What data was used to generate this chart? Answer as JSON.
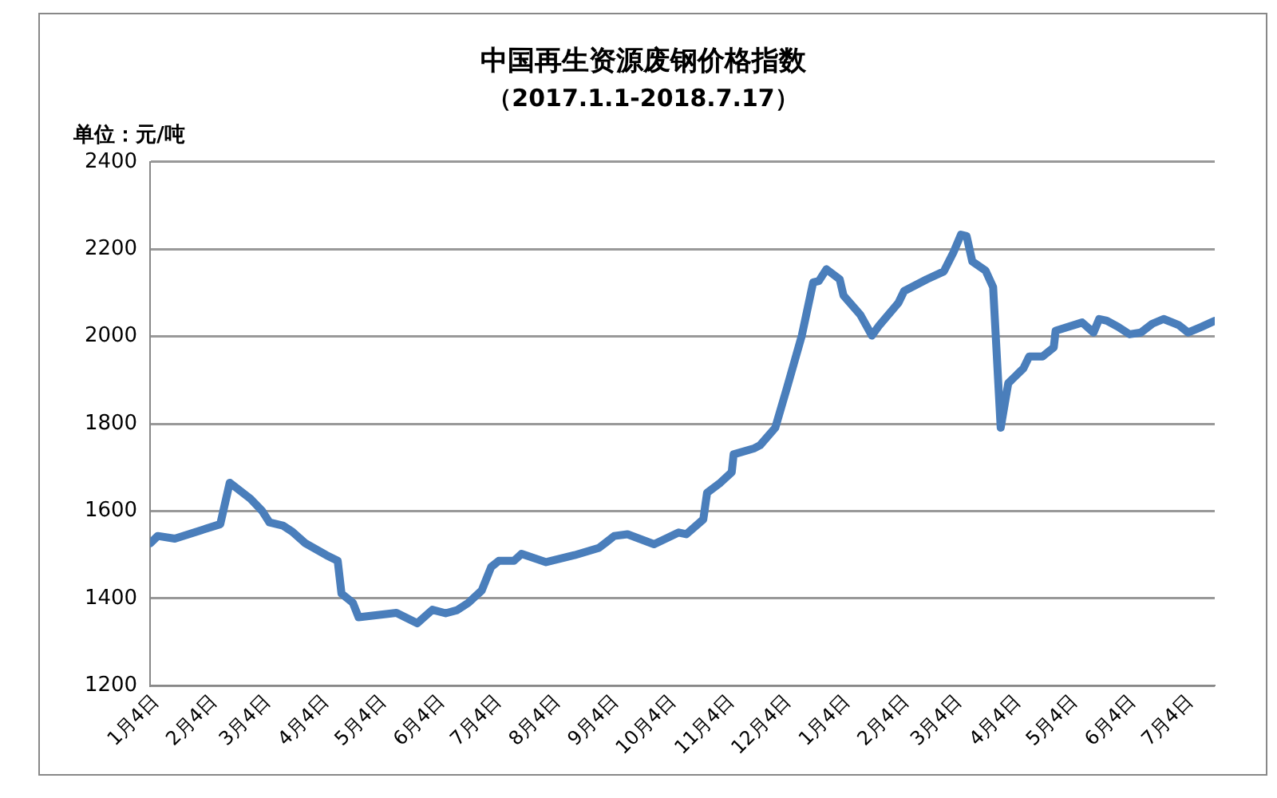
{
  "chart_data": {
    "type": "line",
    "title": "中国再生资源废钢价格指数",
    "subtitle": "（2017.1.1-2018.7.17）",
    "ylabel": "单位：元/吨",
    "x": [
      "2017-01-01",
      "2017-01-05",
      "2017-01-14",
      "2017-02-07",
      "2017-02-12",
      "2017-02-23",
      "2017-03-01",
      "2017-03-05",
      "2017-03-12",
      "2017-03-17",
      "2017-03-24",
      "2017-04-04",
      "2017-04-10",
      "2017-04-12",
      "2017-04-18",
      "2017-04-21",
      "2017-05-11",
      "2017-05-22",
      "2017-05-30",
      "2017-06-06",
      "2017-06-12",
      "2017-06-18",
      "2017-06-25",
      "2017-06-30",
      "2017-07-04",
      "2017-07-12",
      "2017-07-16",
      "2017-07-29",
      "2017-08-13",
      "2017-08-26",
      "2017-09-03",
      "2017-09-10",
      "2017-09-24",
      "2017-10-07",
      "2017-10-11",
      "2017-10-20",
      "2017-10-22",
      "2017-10-29",
      "2017-11-04",
      "2017-11-05",
      "2017-11-16",
      "2017-11-19",
      "2017-11-27",
      "2017-12-03",
      "2017-12-11",
      "2017-12-17",
      "2017-12-20",
      "2017-12-24",
      "2017-12-31",
      "2018-01-02",
      "2018-01-11",
      "2018-01-17",
      "2018-01-21",
      "2018-01-31",
      "2018-02-03",
      "2018-02-15",
      "2018-02-24",
      "2018-03-01",
      "2018-03-05",
      "2018-03-08",
      "2018-03-11",
      "2018-03-18",
      "2018-03-22",
      "2018-03-26",
      "2018-03-30",
      "2018-04-07",
      "2018-04-10",
      "2018-04-17",
      "2018-04-23",
      "2018-04-24",
      "2018-05-08",
      "2018-05-14",
      "2018-05-17",
      "2018-05-21",
      "2018-05-27",
      "2018-06-02",
      "2018-06-08",
      "2018-06-14",
      "2018-06-20",
      "2018-06-28",
      "2018-07-03",
      "2018-07-10",
      "2018-07-17"
    ],
    "series": [
      {
        "color": "#4a7ebb",
        "values": [
          1526,
          1543,
          1537,
          1570,
          1665,
          1628,
          1601,
          1574,
          1567,
          1553,
          1526,
          1499,
          1486,
          1411,
          1390,
          1357,
          1367,
          1343,
          1374,
          1366,
          1373,
          1390,
          1418,
          1472,
          1486,
          1486,
          1502,
          1483,
          1499,
          1516,
          1543,
          1547,
          1524,
          1551,
          1547,
          1581,
          1642,
          1665,
          1689,
          1730,
          1744,
          1751,
          1791,
          1880,
          2002,
          2124,
          2127,
          2154,
          2131,
          2094,
          2049,
          2002,
          2026,
          2077,
          2104,
          2131,
          2149,
          2192,
          2233,
          2230,
          2172,
          2151,
          2113,
          1791,
          1893,
          1927,
          1954,
          1954,
          1975,
          2013,
          2032,
          2009,
          2040,
          2036,
          2022,
          2005,
          2009,
          2029,
          2040,
          2026,
          2009,
          2022,
          2036
        ]
      }
    ],
    "xlim": [
      "2017-01-01",
      "2018-07-17"
    ],
    "xticks": [
      {
        "value": "2017-01-04",
        "label": "1月4日"
      },
      {
        "value": "2017-02-04",
        "label": "2月4日"
      },
      {
        "value": "2017-03-04",
        "label": "3月4日"
      },
      {
        "value": "2017-04-04",
        "label": "4月4日"
      },
      {
        "value": "2017-05-04",
        "label": "5月4日"
      },
      {
        "value": "2017-06-04",
        "label": "6月4日"
      },
      {
        "value": "2017-07-04",
        "label": "7月4日"
      },
      {
        "value": "2017-08-04",
        "label": "8月4日"
      },
      {
        "value": "2017-09-04",
        "label": "9月4日"
      },
      {
        "value": "2017-10-04",
        "label": "10月4日"
      },
      {
        "value": "2017-11-04",
        "label": "11月4日"
      },
      {
        "value": "2017-12-04",
        "label": "12月4日"
      },
      {
        "value": "2018-01-04",
        "label": "1月4日"
      },
      {
        "value": "2018-02-04",
        "label": "2月4日"
      },
      {
        "value": "2018-03-04",
        "label": "3月4日"
      },
      {
        "value": "2018-04-04",
        "label": "4月4日"
      },
      {
        "value": "2018-05-04",
        "label": "5月4日"
      },
      {
        "value": "2018-06-04",
        "label": "6月4日"
      },
      {
        "value": "2018-07-04",
        "label": "7月4日"
      }
    ],
    "ylim": [
      1200,
      2400
    ],
    "yticks": [
      1200,
      1400,
      1600,
      1800,
      2000,
      2200,
      2400
    ],
    "grid": "y",
    "legend": false,
    "marker": "none",
    "line_style": "solid"
  }
}
